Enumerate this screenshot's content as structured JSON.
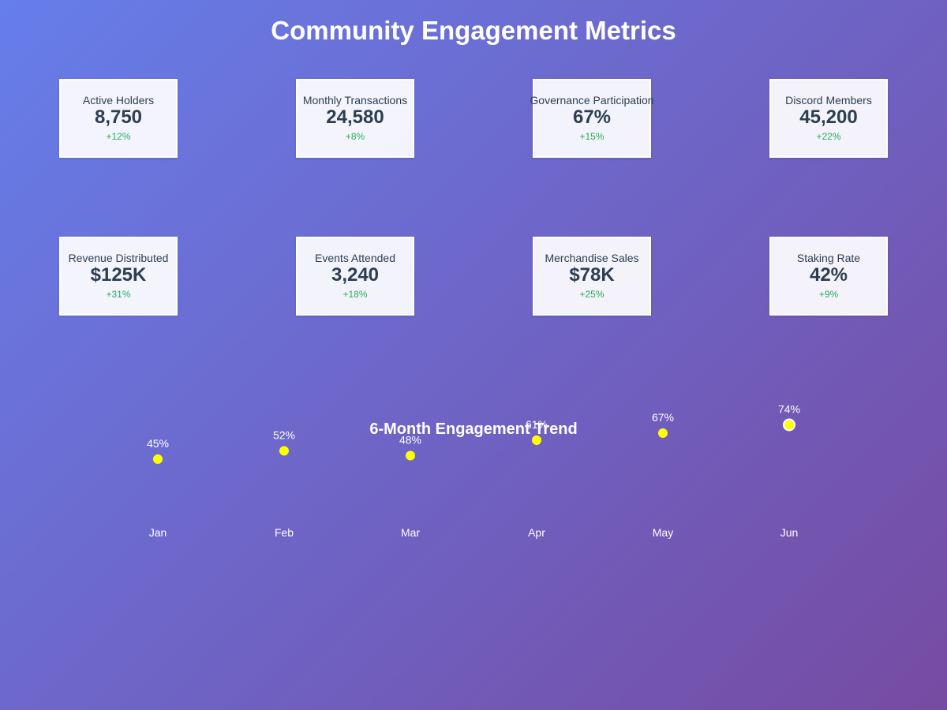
{
  "page": {
    "title": "Community Engagement Metrics"
  },
  "metrics": [
    {
      "label": "Active Holders",
      "value": "8,750",
      "change": "+12%"
    },
    {
      "label": "Monthly Transactions",
      "value": "24,580",
      "change": "+8%"
    },
    {
      "label": "Governance Participation",
      "value": "67%",
      "change": "+15%"
    },
    {
      "label": "Discord Members",
      "value": "45,200",
      "change": "+22%"
    },
    {
      "label": "Revenue Distributed",
      "value": "$125K",
      "change": "+31%"
    },
    {
      "label": "Events Attended",
      "value": "3,240",
      "change": "+18%"
    },
    {
      "label": "Merchandise Sales",
      "value": "$78K",
      "change": "+25%"
    },
    {
      "label": "Staking Rate",
      "value": "42%",
      "change": "+9%"
    }
  ],
  "colors": {
    "positive_change": "#27ae60",
    "card_text": "#2c3e50",
    "point_fill": "#ffff00",
    "highlight_stroke": "#ffffff"
  },
  "chart_data": {
    "type": "scatter",
    "title": "6-Month Engagement Trend",
    "categories": [
      "Jan",
      "Feb",
      "Mar",
      "Apr",
      "May",
      "Jun"
    ],
    "values": [
      45,
      52,
      48,
      61,
      67,
      74
    ],
    "value_labels": [
      "45%",
      "52%",
      "48%",
      "61%",
      "67%",
      "74%"
    ],
    "unit": "%",
    "highlighted_category": "Jun",
    "xlabel": "",
    "ylabel": "",
    "grid": false
  }
}
